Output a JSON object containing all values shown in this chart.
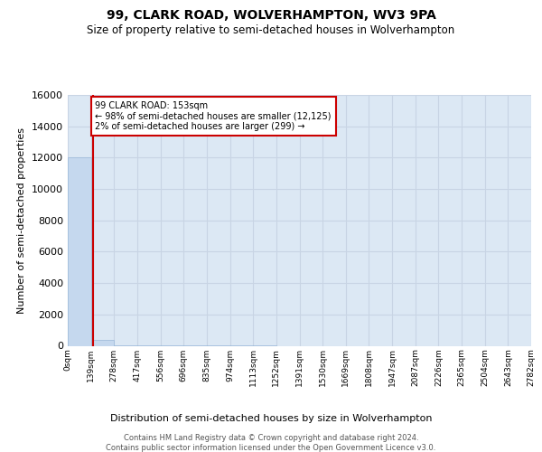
{
  "title": "99, CLARK ROAD, WOLVERHAMPTON, WV3 9PA",
  "subtitle": "Size of property relative to semi-detached houses in Wolverhampton",
  "xlabel": "Distribution of semi-detached houses by size in Wolverhampton",
  "ylabel": "Number of semi-detached properties",
  "footer_line1": "Contains HM Land Registry data © Crown copyright and database right 2024.",
  "footer_line2": "Contains public sector information licensed under the Open Government Licence v3.0.",
  "property_size": 153,
  "annotation_line1": "99 CLARK ROAD: 153sqm",
  "annotation_line2": "← 98% of semi-detached houses are smaller (12,125)",
  "annotation_line3": "2% of semi-detached houses are larger (299) →",
  "bin_edges": [
    0,
    139,
    278,
    417,
    556,
    696,
    835,
    974,
    1113,
    1252,
    1391,
    1530,
    1669,
    1808,
    1947,
    2087,
    2226,
    2365,
    2504,
    2643,
    2782
  ],
  "bar_heights": [
    12000,
    400,
    10,
    4,
    3,
    2,
    1,
    1,
    1,
    0,
    0,
    0,
    0,
    0,
    0,
    0,
    0,
    0,
    0,
    0
  ],
  "bar_color": "#c5d8ee",
  "bar_edge_color": "#9ab8d8",
  "marker_color": "#cc0000",
  "annotation_edge_color": "#cc0000",
  "ylim_max": 16000,
  "yticks": [
    0,
    2000,
    4000,
    6000,
    8000,
    10000,
    12000,
    14000,
    16000
  ],
  "tick_labels": [
    "0sqm",
    "139sqm",
    "278sqm",
    "417sqm",
    "556sqm",
    "696sqm",
    "835sqm",
    "974sqm",
    "1113sqm",
    "1252sqm",
    "1391sqm",
    "1530sqm",
    "1669sqm",
    "1808sqm",
    "1947sqm",
    "2087sqm",
    "2226sqm",
    "2365sqm",
    "2504sqm",
    "2643sqm",
    "2782sqm"
  ],
  "grid_color": "#c8d4e4",
  "bg_color": "#dce8f4"
}
